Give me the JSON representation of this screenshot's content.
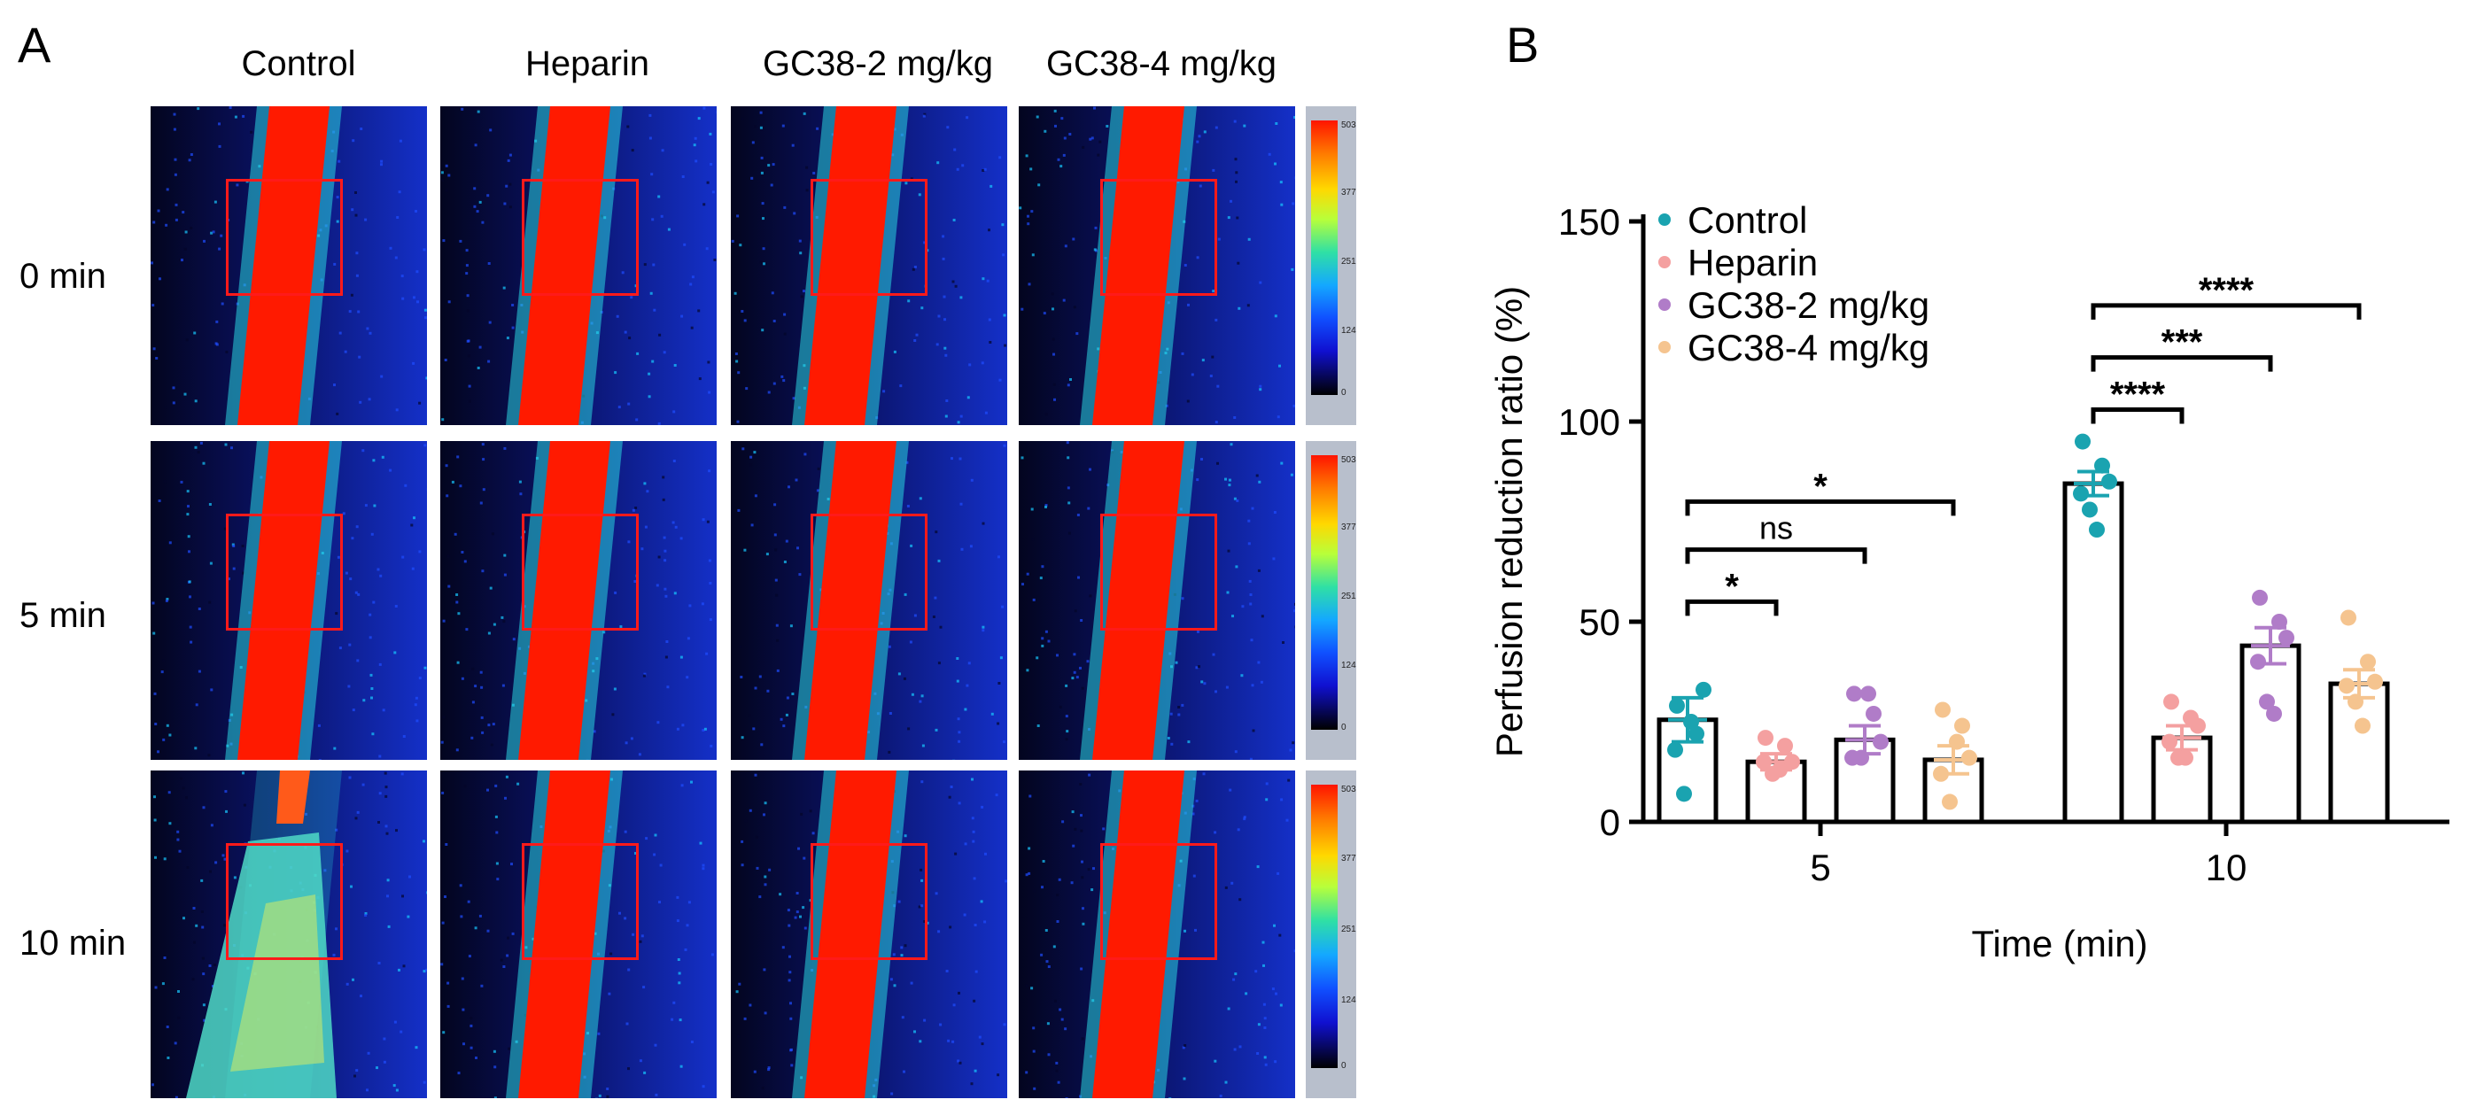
{
  "panel_a": {
    "label": "A",
    "columns": [
      "Control",
      "Heparin",
      "GC38-2 mg/kg",
      "GC38-4 mg/kg"
    ],
    "rows": [
      "0 min",
      "5 min",
      "10 min"
    ],
    "colorbar_ticks": [
      "503",
      "377",
      "251",
      "124",
      "0"
    ]
  },
  "panel_b": {
    "label": "B"
  },
  "colors": {
    "control": "#1aa3b0",
    "heparin": "#f4a0a0",
    "gc38_2": "#b07cc8",
    "gc38_4": "#f5c48f",
    "vessel": "#ff1a00",
    "background_tissue": "#0a1266",
    "roi": "#ff1a1a"
  },
  "chart_data": {
    "type": "bar",
    "ylabel": "Perfusion reduction ratio (%)",
    "xlabel": "Time (min)",
    "ylim": [
      0,
      150
    ],
    "yticks": [
      0,
      50,
      100,
      150
    ],
    "categories": [
      "5",
      "10"
    ],
    "series": [
      {
        "name": "Control",
        "values": [
          25.5,
          84.5
        ],
        "sem": [
          5.5,
          3.0
        ],
        "points": [
          [
            29,
            22,
            33,
            18,
            7,
            25
          ],
          [
            95,
            89,
            85,
            82,
            78,
            73
          ]
        ]
      },
      {
        "name": "Heparin",
        "values": [
          15.0,
          21.0
        ],
        "sem": [
          2.0,
          3.0
        ],
        "points": [
          [
            21,
            19,
            15,
            15,
            12,
            13
          ],
          [
            30,
            26,
            24,
            20,
            16,
            16
          ]
        ]
      },
      {
        "name": "GC38-2 mg/kg",
        "values": [
          20.5,
          44.0
        ],
        "sem": [
          3.5,
          4.5
        ],
        "points": [
          [
            32,
            27,
            20,
            16,
            16,
            32
          ],
          [
            56,
            50,
            46,
            40,
            30,
            27
          ]
        ]
      },
      {
        "name": "GC38-4 mg/kg",
        "values": [
          15.5,
          34.5
        ],
        "sem": [
          3.5,
          3.5
        ],
        "points": [
          [
            28,
            24,
            16,
            12,
            5,
            20
          ],
          [
            51,
            40,
            35,
            34,
            30,
            24
          ]
        ]
      }
    ],
    "significance": [
      {
        "group": "5",
        "from": "Control",
        "to": "Heparin",
        "label": "*",
        "y": 55
      },
      {
        "group": "5",
        "from": "Control",
        "to": "GC38-2 mg/kg",
        "label": "ns",
        "y": 68
      },
      {
        "group": "5",
        "from": "Control",
        "to": "GC38-4 mg/kg",
        "label": "*",
        "y": 80
      },
      {
        "group": "10",
        "from": "Control",
        "to": "Heparin",
        "label": "****",
        "y": 103
      },
      {
        "group": "10",
        "from": "Control",
        "to": "GC38-2 mg/kg",
        "label": "***",
        "y": 116
      },
      {
        "group": "10",
        "from": "Control",
        "to": "GC38-4 mg/kg",
        "label": "****",
        "y": 129
      }
    ]
  }
}
